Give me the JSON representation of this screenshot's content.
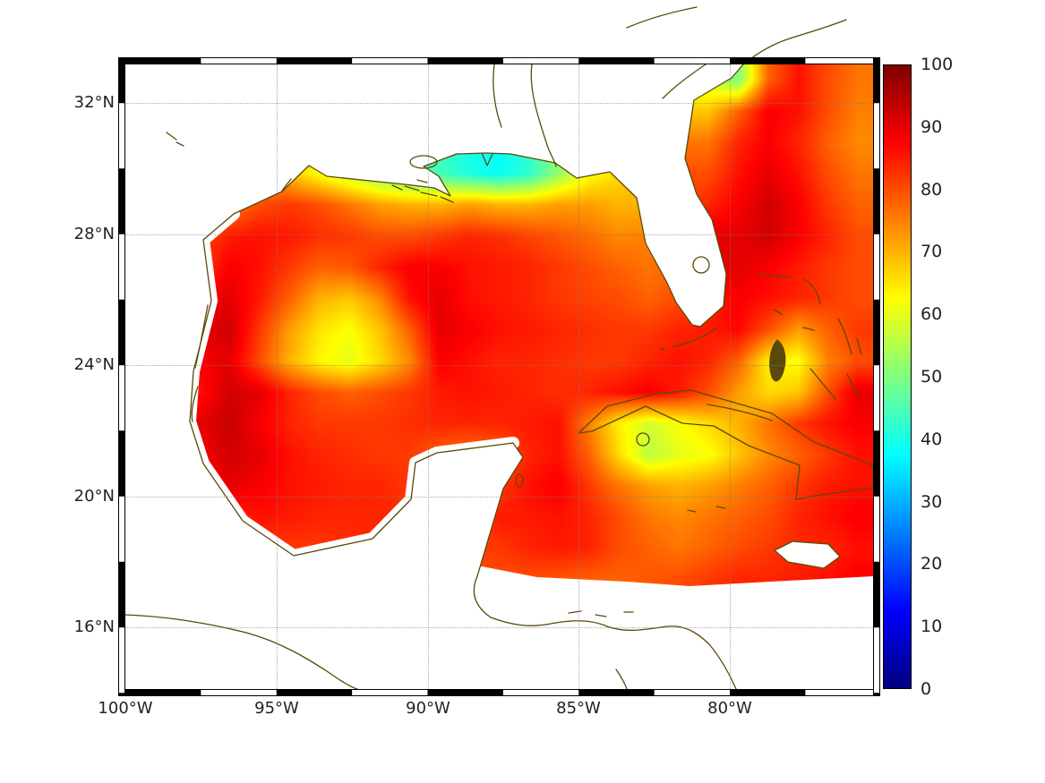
{
  "chart_data": {
    "type": "heatmap",
    "title": "",
    "map_extent": {
      "lon_min": -100.0,
      "lon_max": -75.26,
      "lat_min": 14.12,
      "lat_max": 33.17
    },
    "x_axis": {
      "tick_lons": [
        -100,
        -95,
        -90,
        -85,
        -80
      ],
      "tick_labels": [
        "100°W",
        "95°W",
        "90°W",
        "85°W",
        "80°W"
      ]
    },
    "y_axis": {
      "tick_lats": [
        32,
        28,
        24,
        20,
        16
      ],
      "tick_labels": [
        "32°N",
        "28°N",
        "24°N",
        "20°N",
        "16°N"
      ]
    },
    "colorbar": {
      "min": 0,
      "max": 100,
      "colormap": "jet",
      "position": "right",
      "tick_values": [
        0,
        10,
        20,
        30,
        40,
        50,
        60,
        70,
        80,
        90,
        100
      ],
      "tick_labels": [
        "0",
        "10",
        "20",
        "30",
        "40",
        "50",
        "60",
        "70",
        "80",
        "90",
        "100"
      ]
    },
    "grid_on": true,
    "frame": {
      "style": "alternating black/white band",
      "lon_segment_deg": 2.5,
      "lat_segment_deg": 2
    },
    "no_data_color": "#ffffff",
    "styles": {
      "coastline_color": "#5a4a08",
      "land_color": "#ffffff",
      "gridline_color": "#7d7d7d"
    },
    "map_features": [
      "North America coastline",
      "Florida",
      "Yucatan Peninsula",
      "Cuba",
      "Jamaica",
      "Bahamas",
      "Honduras coastline",
      "Pacific coastline of Mexico"
    ],
    "grid": {
      "ncols": 25,
      "nrows": 20,
      "order": "row-major, row 0 = northernmost (lat 33.17), col 0 = westernmost (lon -100); null = no data / land mask",
      "values": [
        [
          null,
          null,
          null,
          null,
          null,
          null,
          null,
          null,
          null,
          null,
          null,
          null,
          null,
          null,
          null,
          null,
          null,
          null,
          null,
          58,
          50,
          78,
          86,
          80,
          76
        ],
        [
          null,
          null,
          null,
          null,
          null,
          null,
          null,
          null,
          null,
          null,
          null,
          null,
          null,
          null,
          null,
          null,
          null,
          null,
          null,
          68,
          78,
          88,
          86,
          80,
          75
        ],
        [
          null,
          null,
          null,
          null,
          null,
          null,
          null,
          null,
          null,
          null,
          null,
          null,
          null,
          null,
          null,
          null,
          null,
          null,
          null,
          76,
          84,
          88,
          84,
          78,
          74
        ],
        [
          null,
          null,
          null,
          null,
          null,
          68,
          62,
          56,
          50,
          46,
          44,
          40,
          38,
          42,
          52,
          62,
          null,
          null,
          null,
          80,
          86,
          90,
          86,
          80,
          76
        ],
        [
          null,
          null,
          null,
          75,
          80,
          82,
          80,
          76,
          72,
          70,
          70,
          72,
          70,
          70,
          72,
          72,
          70,
          null,
          null,
          null,
          88,
          92,
          88,
          82,
          78
        ],
        [
          null,
          null,
          80,
          85,
          86,
          85,
          83,
          82,
          80,
          80,
          82,
          84,
          83,
          81,
          79,
          77,
          74,
          null,
          null,
          null,
          90,
          92,
          88,
          84,
          80
        ],
        [
          null,
          null,
          82,
          88,
          86,
          82,
          78,
          79,
          84,
          88,
          88,
          86,
          85,
          84,
          82,
          80,
          78,
          76,
          null,
          null,
          90,
          88,
          85,
          82,
          80
        ],
        [
          null,
          null,
          88,
          90,
          85,
          78,
          70,
          68,
          74,
          86,
          90,
          86,
          85,
          84,
          82,
          81,
          80,
          78,
          80,
          null,
          88,
          86,
          84,
          82,
          80
        ],
        [
          null,
          null,
          90,
          92,
          82,
          72,
          65,
          62,
          68,
          78,
          90,
          88,
          86,
          85,
          84,
          83,
          82,
          82,
          84,
          85,
          87,
          80,
          72,
          78,
          82
        ],
        [
          null,
          null,
          88,
          90,
          80,
          70,
          63,
          60,
          66,
          74,
          88,
          86,
          84,
          84,
          83,
          82,
          82,
          84,
          86,
          84,
          78,
          64,
          62,
          75,
          80
        ],
        [
          null,
          null,
          86,
          92,
          90,
          84,
          80,
          78,
          80,
          82,
          85,
          86,
          85,
          84,
          83,
          84,
          86,
          88,
          85,
          80,
          72,
          66,
          68,
          80,
          90
        ],
        [
          null,
          null,
          90,
          93,
          88,
          84,
          82,
          82,
          82,
          83,
          84,
          84,
          84,
          85,
          86,
          75,
          64,
          58,
          62,
          66,
          70,
          76,
          82,
          86,
          88
        ],
        [
          null,
          null,
          88,
          92,
          90,
          86,
          84,
          83,
          82,
          82,
          78,
          76,
          78,
          84,
          86,
          78,
          66,
          56,
          60,
          62,
          68,
          74,
          78,
          82,
          86
        ],
        [
          null,
          null,
          86,
          90,
          88,
          86,
          85,
          84,
          84,
          82,
          null,
          null,
          null,
          86,
          88,
          82,
          76,
          72,
          70,
          72,
          75,
          78,
          82,
          85,
          86
        ],
        [
          null,
          null,
          null,
          84,
          86,
          85,
          84,
          84,
          84,
          null,
          null,
          null,
          null,
          85,
          86,
          84,
          80,
          76,
          74,
          76,
          78,
          80,
          84,
          86,
          88
        ],
        [
          null,
          null,
          null,
          null,
          82,
          82,
          82,
          null,
          null,
          null,
          null,
          null,
          null,
          84,
          85,
          84,
          80,
          78,
          76,
          78,
          80,
          82,
          null,
          84,
          86
        ],
        [
          null,
          null,
          null,
          null,
          null,
          null,
          null,
          null,
          null,
          null,
          null,
          null,
          80,
          80,
          79,
          78,
          78,
          79,
          80,
          82,
          84,
          84,
          null,
          86,
          88
        ],
        [
          null,
          null,
          null,
          null,
          null,
          null,
          null,
          null,
          null,
          null,
          null,
          null,
          null,
          null,
          null,
          null,
          null,
          null,
          null,
          null,
          null,
          null,
          null,
          null,
          null
        ],
        [
          null,
          null,
          null,
          null,
          null,
          null,
          null,
          null,
          null,
          null,
          null,
          null,
          null,
          null,
          null,
          null,
          null,
          null,
          null,
          null,
          null,
          null,
          null,
          null,
          null
        ],
        [
          null,
          null,
          null,
          null,
          null,
          null,
          null,
          null,
          null,
          null,
          null,
          null,
          null,
          null,
          null,
          null,
          null,
          null,
          null,
          null,
          null,
          null,
          null,
          null,
          null
        ]
      ]
    }
  }
}
